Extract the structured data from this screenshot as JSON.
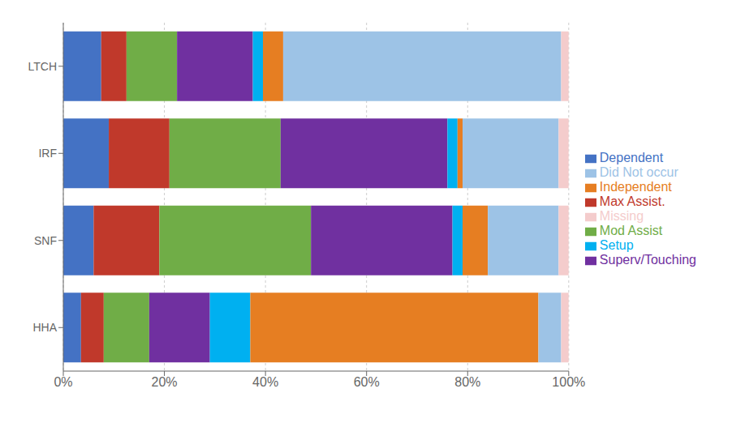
{
  "chart_data": {
    "type": "bar",
    "orientation": "horizontal",
    "stacked": true,
    "categories": [
      "LTCH",
      "IRF",
      "SNF",
      "HHA"
    ],
    "series": [
      {
        "name": "Dependent",
        "color": "#4472C4",
        "values": [
          7.5,
          9.0,
          6.0,
          3.5
        ]
      },
      {
        "name": "Max Assist.",
        "color": "#C0392B",
        "values": [
          5.0,
          12.0,
          13.0,
          4.5
        ]
      },
      {
        "name": "Mod Assist",
        "color": "#70AD47",
        "values": [
          10.0,
          22.0,
          30.0,
          9.0
        ]
      },
      {
        "name": "Superv/Touching",
        "color": "#7030A0",
        "values": [
          15.0,
          33.0,
          28.0,
          12.0
        ]
      },
      {
        "name": "Setup",
        "color": "#00B0F0",
        "values": [
          2.0,
          2.0,
          2.0,
          8.0
        ]
      },
      {
        "name": "Independent",
        "color": "#E67E22",
        "values": [
          4.0,
          1.0,
          5.0,
          57.0
        ]
      },
      {
        "name": "Did Not occur",
        "color": "#9DC3E6",
        "values": [
          55.0,
          19.0,
          14.0,
          4.5
        ]
      },
      {
        "name": "Missing",
        "color": "#F4CCCC",
        "values": [
          1.5,
          2.0,
          2.0,
          1.5
        ]
      }
    ],
    "xlim": [
      0,
      100
    ],
    "xticks": [
      {
        "value": 0,
        "label": "0%"
      },
      {
        "value": 20,
        "label": "20%"
      },
      {
        "value": 40,
        "label": "40%"
      },
      {
        "value": 60,
        "label": "60%"
      },
      {
        "value": 80,
        "label": "80%"
      },
      {
        "value": 100,
        "label": "100%"
      }
    ],
    "grid": true,
    "legend": "right"
  }
}
